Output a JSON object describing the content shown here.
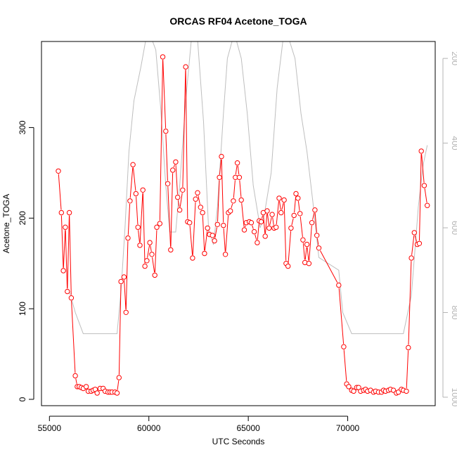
{
  "chart_data": {
    "type": "line",
    "title": "ORCAS RF04 Acetone_TOGA",
    "xlabel": "UTC Seconds",
    "ylabel": "Acetone_TOGA",
    "xlim": [
      54600,
      74400
    ],
    "ylim": [
      -7,
      395
    ],
    "y2lim": [
      1020,
      160
    ],
    "y2_reversed": true,
    "x_ticks": [
      55000,
      60000,
      65000,
      70000
    ],
    "x_tick_labels": [
      "55000",
      "60000",
      "65000",
      "70000"
    ],
    "y_ticks": [
      0,
      100,
      200,
      300
    ],
    "y_tick_labels": [
      "0",
      "100",
      "200",
      "300"
    ],
    "y2_ticks": [
      200,
      400,
      600,
      800,
      1000
    ],
    "y2_tick_labels": [
      "200",
      "400",
      "600",
      "800",
      "1000"
    ],
    "colors": {
      "acetone": "#ff0000",
      "altitude": "#bebebe"
    },
    "series": [
      {
        "key": "acetone",
        "values": [
          [
            55450,
            252
          ],
          [
            55600,
            206
          ],
          [
            55700,
            142
          ],
          [
            55800,
            190
          ],
          [
            55900,
            119
          ],
          [
            56000,
            206
          ],
          [
            56100,
            112
          ],
          [
            56300,
            26
          ],
          [
            56400,
            14
          ],
          [
            56500,
            14
          ],
          [
            56600,
            13
          ],
          [
            56700,
            12
          ],
          [
            56850,
            14
          ],
          [
            56950,
            9
          ],
          [
            57100,
            9
          ],
          [
            57200,
            10
          ],
          [
            57300,
            11
          ],
          [
            57400,
            7
          ],
          [
            57550,
            12
          ],
          [
            57700,
            12
          ],
          [
            57800,
            9
          ],
          [
            57950,
            8
          ],
          [
            58050,
            8
          ],
          [
            58150,
            8
          ],
          [
            58300,
            8
          ],
          [
            58400,
            7
          ],
          [
            58500,
            24
          ],
          [
            58600,
            130
          ],
          [
            58750,
            135
          ],
          [
            58850,
            96
          ],
          [
            58950,
            178
          ],
          [
            59050,
            219
          ],
          [
            59200,
            259
          ],
          [
            59350,
            227
          ],
          [
            59450,
            190
          ],
          [
            59550,
            170
          ],
          [
            59700,
            231
          ],
          [
            59800,
            147
          ],
          [
            59900,
            153
          ],
          [
            60050,
            173
          ],
          [
            60150,
            160
          ],
          [
            60300,
            137
          ],
          [
            60400,
            190
          ],
          [
            60550,
            194
          ],
          [
            60700,
            378
          ],
          [
            60850,
            296
          ],
          [
            60950,
            238
          ],
          [
            61100,
            165
          ],
          [
            61200,
            253
          ],
          [
            61350,
            262
          ],
          [
            61450,
            223
          ],
          [
            61550,
            209
          ],
          [
            61700,
            231
          ],
          [
            61850,
            367
          ],
          [
            61950,
            196
          ],
          [
            62050,
            195
          ],
          [
            62200,
            156
          ],
          [
            62350,
            221
          ],
          [
            62450,
            228
          ],
          [
            62600,
            212
          ],
          [
            62700,
            206
          ],
          [
            62800,
            161
          ],
          [
            62950,
            189
          ],
          [
            63050,
            182
          ],
          [
            63200,
            181
          ],
          [
            63300,
            175
          ],
          [
            63450,
            193
          ],
          [
            63550,
            245
          ],
          [
            63650,
            268
          ],
          [
            63750,
            192
          ],
          [
            63850,
            160
          ],
          [
            64000,
            206
          ],
          [
            64100,
            208
          ],
          [
            64250,
            219
          ],
          [
            64350,
            245
          ],
          [
            64450,
            261
          ],
          [
            64550,
            245
          ],
          [
            64650,
            220
          ],
          [
            64800,
            187
          ],
          [
            64900,
            195
          ],
          [
            65050,
            196
          ],
          [
            65150,
            195
          ],
          [
            65300,
            185
          ],
          [
            65450,
            173
          ],
          [
            65550,
            197
          ],
          [
            65650,
            196
          ],
          [
            65750,
            206
          ],
          [
            65850,
            180
          ],
          [
            65950,
            208
          ],
          [
            66050,
            189
          ],
          [
            66200,
            204
          ],
          [
            66300,
            189
          ],
          [
            66400,
            190
          ],
          [
            66550,
            222
          ],
          [
            66650,
            206
          ],
          [
            66800,
            220
          ],
          [
            66900,
            150
          ],
          [
            67000,
            147
          ],
          [
            67150,
            189
          ],
          [
            67300,
            203
          ],
          [
            67400,
            227
          ],
          [
            67500,
            222
          ],
          [
            67600,
            205
          ],
          [
            67750,
            176
          ],
          [
            67850,
            151
          ],
          [
            67950,
            171
          ],
          [
            68050,
            150
          ],
          [
            68200,
            195
          ],
          [
            68350,
            209
          ],
          [
            68450,
            181
          ],
          [
            68550,
            167
          ],
          [
            69550,
            126
          ],
          [
            69800,
            58
          ],
          [
            69950,
            17
          ],
          [
            70050,
            14
          ],
          [
            70200,
            10
          ],
          [
            70300,
            9
          ],
          [
            70450,
            13
          ],
          [
            70550,
            13
          ],
          [
            70650,
            9
          ],
          [
            70800,
            10
          ],
          [
            70900,
            11
          ],
          [
            71000,
            9
          ],
          [
            71150,
            10
          ],
          [
            71300,
            8
          ],
          [
            71400,
            9
          ],
          [
            71550,
            8
          ],
          [
            71700,
            8
          ],
          [
            71800,
            10
          ],
          [
            71900,
            9
          ],
          [
            72050,
            10
          ],
          [
            72150,
            11
          ],
          [
            72300,
            10
          ],
          [
            72450,
            7
          ],
          [
            72550,
            8
          ],
          [
            72700,
            11
          ],
          [
            72800,
            10
          ],
          [
            72950,
            9
          ],
          [
            73050,
            57
          ],
          [
            73200,
            156
          ],
          [
            73350,
            184
          ],
          [
            73500,
            171
          ],
          [
            73600,
            172
          ],
          [
            73700,
            274
          ],
          [
            73850,
            236
          ],
          [
            74000,
            214
          ]
        ]
      },
      {
        "key": "altitude",
        "values": [
          [
            56000,
            750
          ],
          [
            56300,
            800
          ],
          [
            56700,
            850
          ],
          [
            58400,
            850
          ],
          [
            58600,
            750
          ],
          [
            58800,
            600
          ],
          [
            59000,
            420
          ],
          [
            59250,
            300
          ],
          [
            59600,
            220
          ],
          [
            59850,
            155
          ],
          [
            60150,
            155
          ],
          [
            60350,
            180
          ],
          [
            60600,
            320
          ],
          [
            60850,
            500
          ],
          [
            61050,
            610
          ],
          [
            61350,
            610
          ],
          [
            61550,
            500
          ],
          [
            61850,
            300
          ],
          [
            62150,
            150
          ],
          [
            62450,
            155
          ],
          [
            62750,
            350
          ],
          [
            63000,
            600
          ],
          [
            63250,
            640
          ],
          [
            63450,
            550
          ],
          [
            63750,
            330
          ],
          [
            63950,
            200
          ],
          [
            64300,
            140
          ],
          [
            64650,
            200
          ],
          [
            64950,
            330
          ],
          [
            65250,
            500
          ],
          [
            65600,
            600
          ],
          [
            65800,
            570
          ],
          [
            66150,
            470
          ],
          [
            66450,
            270
          ],
          [
            66750,
            155
          ],
          [
            67050,
            155
          ],
          [
            67350,
            200
          ],
          [
            67650,
            330
          ],
          [
            67950,
            420
          ],
          [
            68250,
            540
          ],
          [
            68550,
            670
          ],
          [
            69550,
            700
          ],
          [
            69750,
            800
          ],
          [
            70200,
            850
          ],
          [
            72800,
            850
          ],
          [
            73200,
            760
          ],
          [
            73550,
            550
          ],
          [
            73800,
            450
          ],
          [
            74000,
            405
          ]
        ]
      }
    ]
  }
}
